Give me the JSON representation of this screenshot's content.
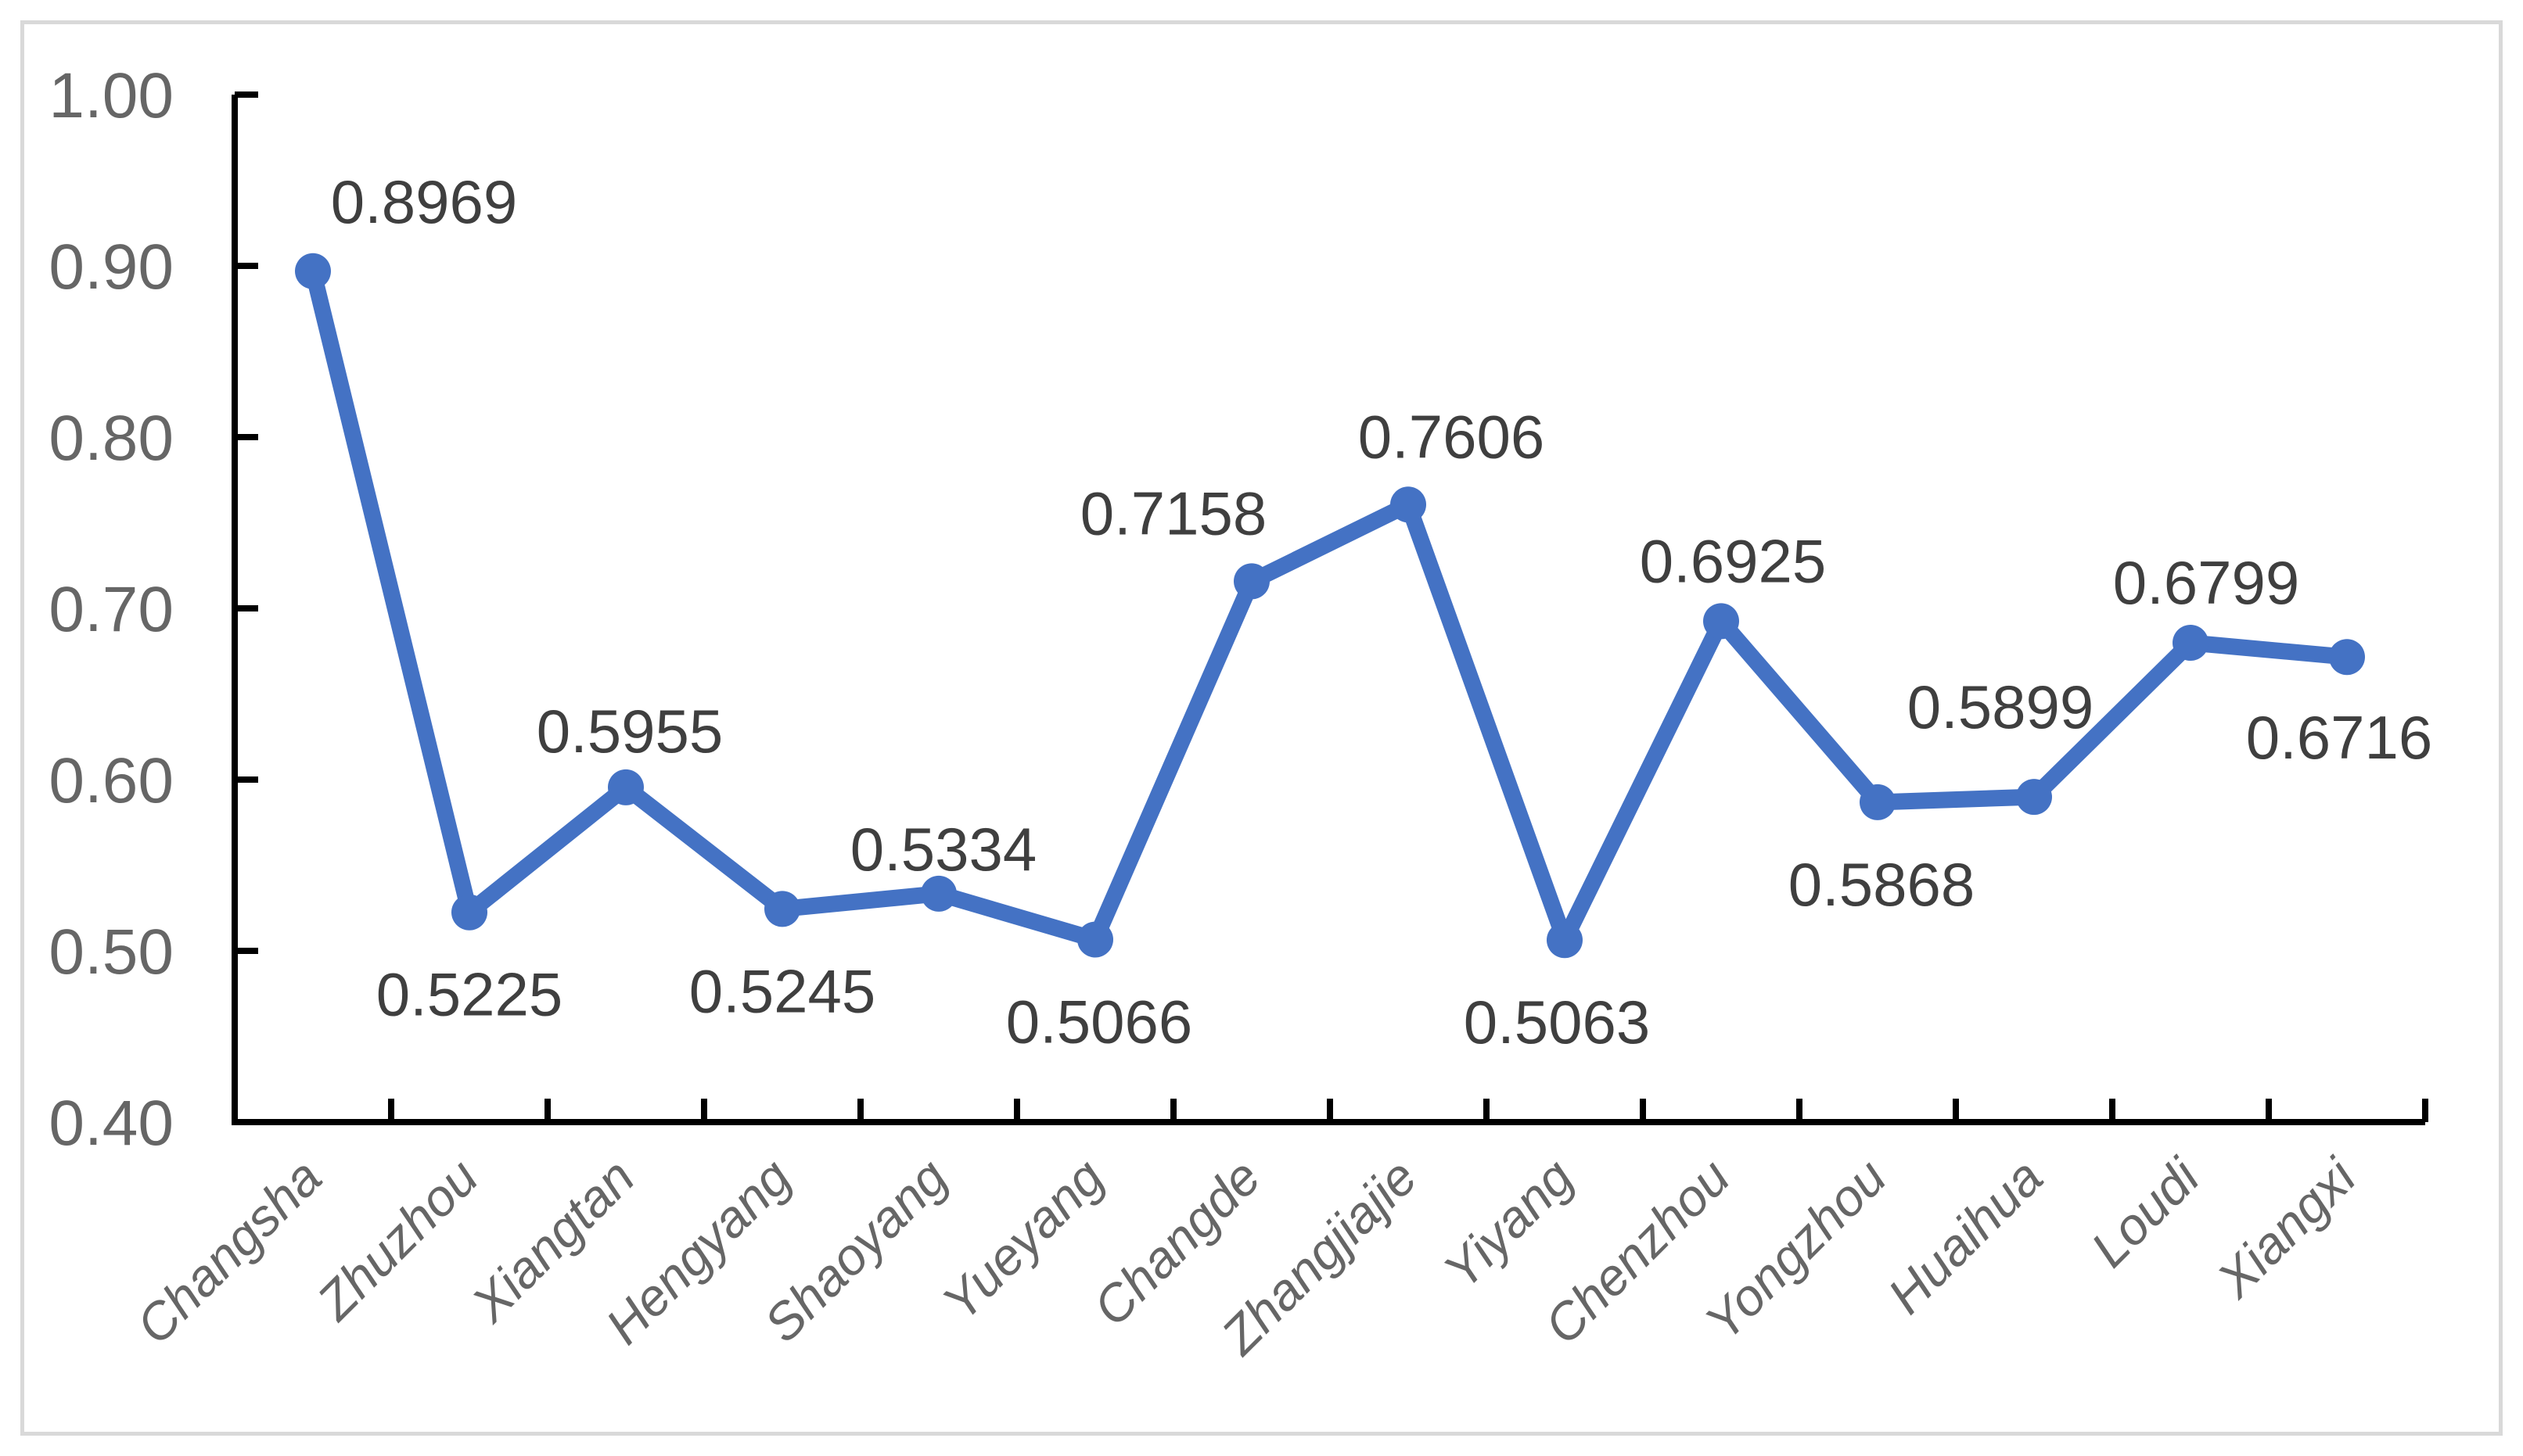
{
  "chart_data": {
    "type": "line",
    "title": "",
    "categories": [
      "Changsha",
      "Zhuzhou",
      "Xiangtan",
      "Hengyang",
      "Shaoyang",
      "Yueyang",
      "Changde",
      "Zhangjiajie",
      "Yiyang",
      "Chenzhou",
      "Yongzhou",
      "Huaihua",
      "Loudi",
      "Xiangxi"
    ],
    "series": [
      {
        "name": "",
        "values": [
          0.8969,
          0.5225,
          0.5955,
          0.5245,
          0.5334,
          0.5066,
          0.7158,
          0.7606,
          0.5063,
          0.6925,
          0.5868,
          0.5899,
          0.6799,
          0.6716
        ],
        "value_labels": [
          "0.8969",
          "0.5225",
          "0.5955",
          "0.5245",
          "0.5334",
          "0.5066",
          "0.7158",
          "0.7606",
          "0.5063",
          "0.6925",
          "0.5868",
          "0.5899",
          "0.6799",
          "0.6716"
        ],
        "label_positions": [
          "above",
          "below",
          "above",
          "below",
          "above",
          "below",
          "above",
          "above",
          "below",
          "above",
          "below",
          "above",
          "above",
          "below"
        ],
        "label_offsets": [
          [
            142,
            -62
          ],
          [
            0,
            132
          ],
          [
            5,
            -45
          ],
          [
            0,
            132
          ],
          [
            6,
            -30
          ],
          [
            5,
            132
          ],
          [
            -100,
            -60
          ],
          [
            55,
            -60
          ],
          [
            -10,
            132
          ],
          [
            15,
            -50
          ],
          [
            5,
            132
          ],
          [
            -43,
            -88
          ],
          [
            20,
            -50
          ],
          [
            -10,
            130
          ]
        ]
      }
    ],
    "y_axis": {
      "min": 0.4,
      "max": 1.0,
      "step": 0.1,
      "tick_labels": [
        "1.00",
        "0.90",
        "0.80",
        "0.70",
        "0.60",
        "0.50",
        "0.40"
      ]
    },
    "x_axis": {
      "label_rotation_deg": -45,
      "label_style": "italic"
    },
    "grid": false,
    "legend": false,
    "marker": "circle",
    "colors": {
      "line": "#4472C4",
      "marker": "#4472C4",
      "data_label": "#3f3f3f",
      "axis_tick_label": "#666666",
      "category_label": "#666666",
      "axis_line": "#000000",
      "frame_border": "#d9d9d9",
      "background": "#ffffff"
    }
  }
}
